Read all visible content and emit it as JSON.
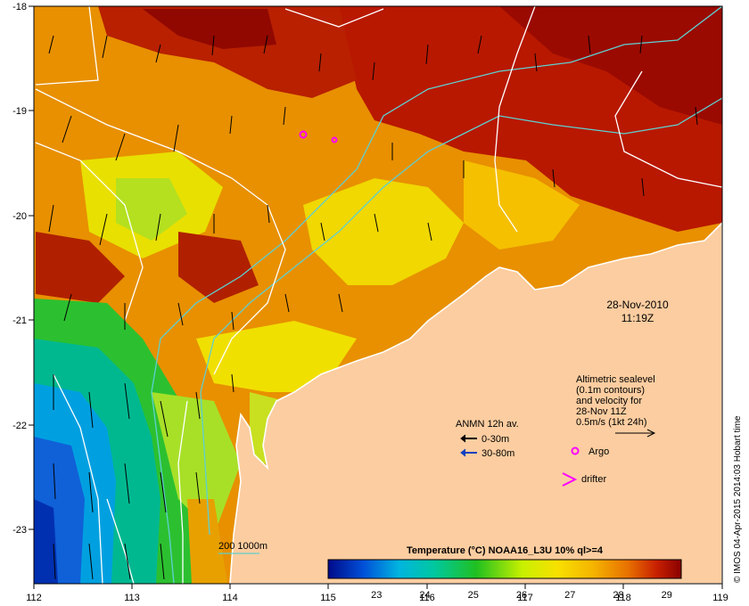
{
  "map": {
    "lon_ticks": [
      "112",
      "113",
      "114",
      "115",
      "116",
      "117",
      "118",
      "119"
    ],
    "lat_ticks": [
      "-18",
      "-19",
      "-20",
      "-21",
      "-22",
      "-23"
    ],
    "date": "28-Nov-2010",
    "time": "11:19Z",
    "colors": {
      "land": "#fccda0",
      "coast": "#ffffff",
      "isobath": "#5fd0d0",
      "sla_contour": "#ffffff",
      "argo": "#ff00ff"
    }
  },
  "legend": {
    "anmn_title": "ANMN 12h av.",
    "anmn_shallow": "0-30m",
    "anmn_deep": "30-80m",
    "altimetry_lines": [
      "Altimetric sealevel",
      "(0.1m contours)",
      "and velocity for",
      "28-Nov 11Z",
      "0.5m/s (1kt 24h)"
    ],
    "argo": "Argo",
    "drifter": "drifter",
    "isobath_label": "200  1000m"
  },
  "colorbar": {
    "title": "Temperature (°C) NOAA16_L3U 10% ql>=4",
    "ticks": [
      "23",
      "24",
      "25",
      "26",
      "27",
      "28",
      "29"
    ],
    "min": 22.0,
    "max": 29.3
  },
  "credit": "© IMOS 04-Apr-2015 2014:03 Hobart time"
}
